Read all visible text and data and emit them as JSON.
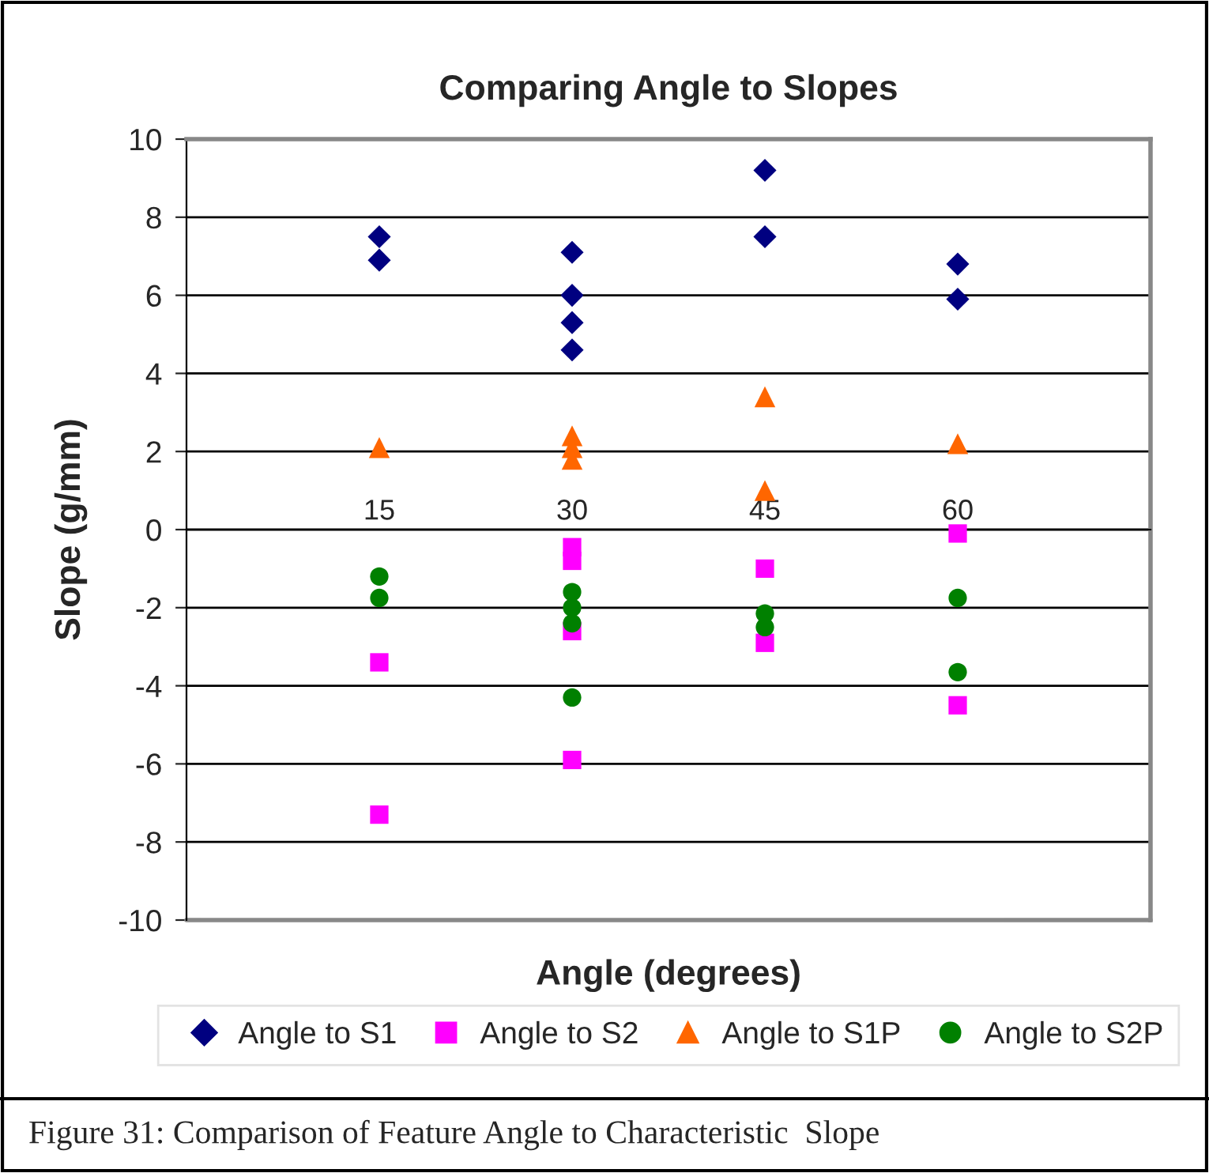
{
  "chart_data": {
    "type": "scatter",
    "title": "Comparing Angle to Slopes",
    "xlabel": "Angle (degrees)",
    "ylabel": "Slope (g/mm)",
    "xlim": [
      0,
      75
    ],
    "xticks": [
      15,
      30,
      45,
      60
    ],
    "ylim": [
      -10,
      10
    ],
    "yticks": [
      -10,
      -8,
      -6,
      -4,
      -2,
      0,
      2,
      4,
      6,
      8,
      10
    ],
    "grid": "y",
    "legend": "bottom",
    "series": [
      {
        "name": "Angle to S1",
        "color": "#000080",
        "marker": "diamond",
        "x": [
          15,
          15,
          30,
          30,
          30,
          30,
          45,
          45,
          60,
          60
        ],
        "values": [
          7.5,
          6.9,
          7.1,
          6.0,
          5.3,
          4.6,
          9.2,
          7.5,
          6.8,
          5.9
        ]
      },
      {
        "name": "Angle to S2",
        "color": "#ff00ff",
        "marker": "square",
        "x": [
          15,
          15,
          30,
          30,
          30,
          30,
          45,
          45,
          60,
          60
        ],
        "values": [
          -3.4,
          -7.3,
          -0.45,
          -0.8,
          -2.6,
          -5.9,
          -1.0,
          -2.9,
          -0.1,
          -4.5
        ]
      },
      {
        "name": "Angle to S1P",
        "color": "#ff6600",
        "marker": "triangle",
        "x": [
          15,
          30,
          30,
          30,
          45,
          45,
          60
        ],
        "values": [
          2.1,
          2.4,
          2.1,
          1.8,
          3.4,
          1.0,
          2.2
        ]
      },
      {
        "name": "Angle to S2P",
        "color": "#008000",
        "marker": "circle",
        "x": [
          15,
          15,
          30,
          30,
          30,
          30,
          45,
          45,
          60,
          60
        ],
        "values": [
          -1.2,
          -1.75,
          -1.6,
          -2.0,
          -2.4,
          -4.3,
          -2.15,
          -2.5,
          -1.75,
          -3.65
        ]
      }
    ],
    "annotations": [
      "Figure 31: Comparison of Feature Angle to Characteristic  Slope"
    ]
  }
}
